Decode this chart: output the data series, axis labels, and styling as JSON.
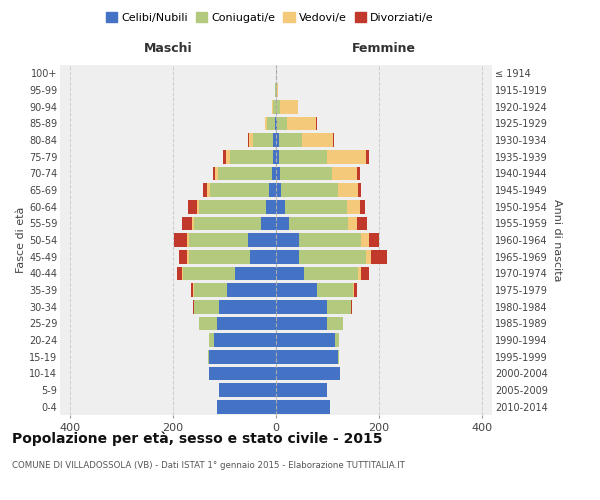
{
  "age_groups": [
    "0-4",
    "5-9",
    "10-14",
    "15-19",
    "20-24",
    "25-29",
    "30-34",
    "35-39",
    "40-44",
    "45-49",
    "50-54",
    "55-59",
    "60-64",
    "65-69",
    "70-74",
    "75-79",
    "80-84",
    "85-89",
    "90-94",
    "95-99",
    "100+"
  ],
  "birth_years": [
    "2010-2014",
    "2005-2009",
    "2000-2004",
    "1995-1999",
    "1990-1994",
    "1985-1989",
    "1980-1984",
    "1975-1979",
    "1970-1974",
    "1965-1969",
    "1960-1964",
    "1955-1959",
    "1950-1954",
    "1945-1949",
    "1940-1944",
    "1935-1939",
    "1930-1934",
    "1925-1929",
    "1920-1924",
    "1915-1919",
    "≤ 1914"
  ],
  "males": {
    "celibe": [
      115,
      110,
      130,
      130,
      120,
      115,
      110,
      95,
      80,
      50,
      55,
      30,
      20,
      14,
      8,
      5,
      5,
      2,
      0,
      0,
      0
    ],
    "coniugato": [
      0,
      0,
      0,
      3,
      10,
      35,
      50,
      65,
      100,
      120,
      115,
      130,
      130,
      115,
      105,
      85,
      40,
      15,
      5,
      2,
      0
    ],
    "vedovo": [
      0,
      0,
      0,
      0,
      0,
      0,
      0,
      1,
      2,
      3,
      3,
      3,
      4,
      5,
      5,
      8,
      8,
      5,
      3,
      0,
      0
    ],
    "divorziato": [
      0,
      0,
      0,
      0,
      0,
      0,
      2,
      5,
      10,
      15,
      25,
      20,
      18,
      8,
      5,
      5,
      2,
      0,
      0,
      0,
      0
    ]
  },
  "females": {
    "nubile": [
      105,
      100,
      125,
      120,
      115,
      100,
      100,
      80,
      55,
      45,
      45,
      25,
      18,
      10,
      8,
      5,
      5,
      2,
      0,
      0,
      0
    ],
    "coniugata": [
      0,
      0,
      0,
      2,
      8,
      30,
      45,
      70,
      105,
      130,
      120,
      115,
      120,
      110,
      100,
      95,
      45,
      20,
      8,
      2,
      0
    ],
    "vedova": [
      0,
      0,
      0,
      0,
      0,
      0,
      1,
      2,
      5,
      10,
      15,
      18,
      25,
      40,
      50,
      75,
      60,
      55,
      35,
      2,
      0
    ],
    "divorziata": [
      0,
      0,
      0,
      0,
      0,
      0,
      2,
      5,
      15,
      30,
      20,
      18,
      10,
      5,
      5,
      5,
      3,
      2,
      0,
      0,
      0
    ]
  },
  "colors": {
    "celibe": "#4472c4",
    "coniugato": "#b3c97e",
    "vedovo": "#f5c97a",
    "divorziato": "#c0392b"
  },
  "legend_labels": [
    "Celibi/Nubili",
    "Coniugati/e",
    "Vedovi/e",
    "Divorziati/e"
  ],
  "xlim": 420,
  "title": "Popolazione per età, sesso e stato civile - 2015",
  "subtitle": "COMUNE DI VILLADOSSOLA (VB) - Dati ISTAT 1° gennaio 2015 - Elaborazione TUTTITALIA.IT",
  "ylabel_left": "Fasce di età",
  "ylabel_right": "Anni di nascita",
  "xlabel_left": "Maschi",
  "xlabel_right": "Femmine",
  "bg_color": "#efefef"
}
